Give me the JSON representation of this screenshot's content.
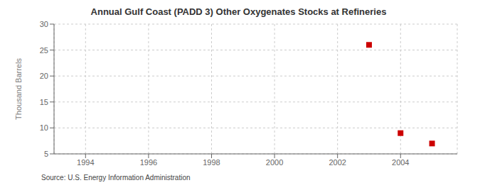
{
  "chart_data": {
    "type": "scatter",
    "title": "Annual Gulf Coast (PADD 3) Other Oxygenates Stocks at Refineries",
    "ylabel": "Thousand Barrels",
    "annotation": "Source: U.S. Energy Information Administration",
    "x": [
      2003,
      2004,
      2005
    ],
    "values": [
      26,
      9,
      7
    ],
    "color": "#cc0000",
    "marker": "square",
    "xlim": [
      1993.0,
      2005.8
    ],
    "ylim": [
      5,
      30
    ],
    "xticks": [
      1994,
      1996,
      1998,
      2000,
      2002,
      2004
    ],
    "yticks": [
      5,
      10,
      15,
      20,
      25,
      30
    ],
    "grid": true
  }
}
